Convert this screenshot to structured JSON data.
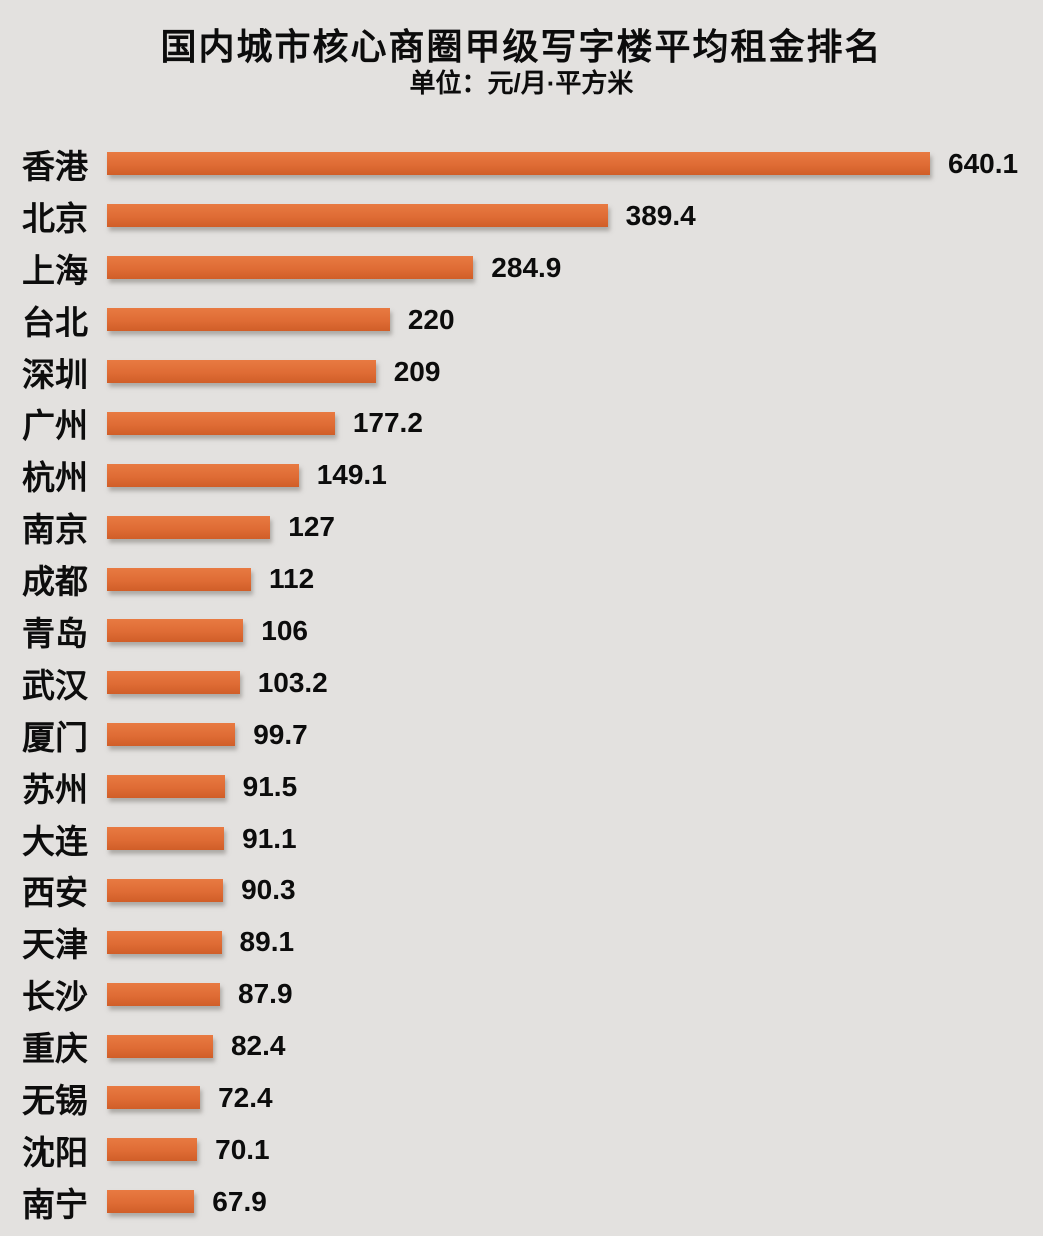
{
  "title": "国内城市核心商圈甲级写字楼平均租金排名",
  "subtitle": "单位：元/月·平方米",
  "bar_color": "#df6c35",
  "background_color": "#e3e1df",
  "chart_data": {
    "type": "bar",
    "orientation": "horizontal",
    "title": "国内城市核心商圈甲级写字楼平均租金排名",
    "unit_label": "单位：元/月·平方米",
    "categories": [
      "香港",
      "北京",
      "上海",
      "台北",
      "深圳",
      "广州",
      "杭州",
      "南京",
      "成都",
      "青岛",
      "武汉",
      "厦门",
      "苏州",
      "大连",
      "西安",
      "天津",
      "长沙",
      "重庆",
      "无锡",
      "沈阳",
      "南宁"
    ],
    "values": [
      640.1,
      389.4,
      284.9,
      220,
      209,
      177.2,
      149.1,
      127,
      112,
      106,
      103.2,
      99.7,
      91.5,
      91.1,
      90.3,
      89.1,
      87.9,
      82.4,
      72.4,
      70.1,
      67.9
    ],
    "value_labels": [
      "640.1",
      "389.4",
      "284.9",
      "220",
      "209",
      "177.2",
      "149.1",
      "127",
      "112",
      "106",
      "103.2",
      "99.7",
      "91.5",
      "91.1",
      "90.3",
      "89.1",
      "87.9",
      "82.4",
      "72.4",
      "70.1",
      "67.9"
    ],
    "xlim": [
      0,
      700
    ],
    "grid": false,
    "legend": null
  }
}
